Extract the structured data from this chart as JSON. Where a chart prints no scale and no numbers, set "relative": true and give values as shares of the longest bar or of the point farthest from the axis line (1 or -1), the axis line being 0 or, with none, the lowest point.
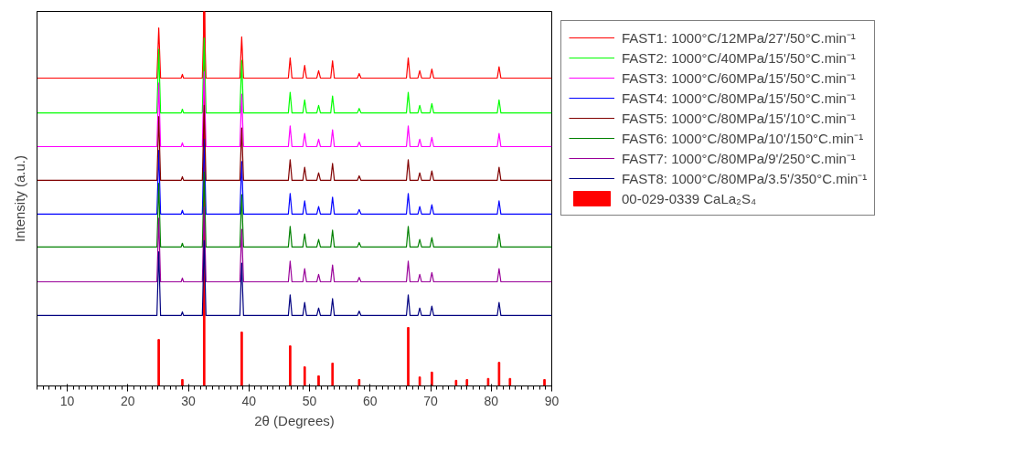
{
  "chart_data": {
    "type": "line",
    "relative": true,
    "xlabel": "2θ (Degrees)",
    "ylabel": "Intensity (a.u.)",
    "xlim": [
      5,
      90
    ],
    "xticks": [
      10,
      20,
      30,
      40,
      50,
      60,
      70,
      80,
      90
    ],
    "grid": false,
    "legend": "right",
    "tick_labels": "x",
    "x": [
      5,
      24.8,
      25.1,
      25.4,
      28.8,
      29.0,
      29.2,
      32.3,
      32.6,
      32.9,
      38.5,
      38.8,
      39.1,
      46.5,
      46.8,
      47.1,
      48.9,
      49.2,
      49.5,
      51.2,
      51.5,
      51.8,
      53.5,
      53.8,
      54.1,
      57.9,
      58.2,
      58.5,
      66.0,
      66.3,
      66.6,
      67.9,
      68.2,
      68.5,
      69.9,
      70.2,
      70.5,
      81.0,
      81.3,
      81.6,
      90
    ],
    "series": [
      {
        "name": "FAST1: 1000°C/12MPa/27'/50°C.min⁻¹",
        "color": "#ff0000",
        "values": [
          0.822,
          0.822,
          0.956,
          0.822,
          0.822,
          0.832,
          0.822,
          0.822,
          1.0,
          0.822,
          0.822,
          0.932,
          0.822,
          0.822,
          0.876,
          0.822,
          0.822,
          0.856,
          0.822,
          0.822,
          0.842,
          0.822,
          0.822,
          0.868,
          0.822,
          0.822,
          0.834,
          0.822,
          0.822,
          0.876,
          0.822,
          0.822,
          0.842,
          0.822,
          0.822,
          0.846,
          0.822,
          0.822,
          0.852,
          0.822,
          0.822
        ]
      },
      {
        "name": "FAST2: 1000°C/40MPa/15'/50°C.min⁻¹",
        "color": "#00ff00",
        "values": [
          0.729,
          0.729,
          0.899,
          0.729,
          0.729,
          0.739,
          0.729,
          0.729,
          0.929,
          0.729,
          0.729,
          0.869,
          0.729,
          0.729,
          0.784,
          0.729,
          0.729,
          0.764,
          0.729,
          0.729,
          0.749,
          0.729,
          0.729,
          0.774,
          0.729,
          0.729,
          0.741,
          0.729,
          0.729,
          0.784,
          0.729,
          0.729,
          0.749,
          0.729,
          0.729,
          0.754,
          0.729,
          0.729,
          0.764,
          0.729,
          0.729
        ]
      },
      {
        "name": "FAST3: 1000°C/60MPa/15'/50°C.min⁻¹",
        "color": "#ff00ff",
        "values": [
          0.639,
          0.639,
          0.809,
          0.639,
          0.639,
          0.649,
          0.639,
          0.639,
          0.839,
          0.639,
          0.639,
          0.779,
          0.639,
          0.639,
          0.694,
          0.639,
          0.639,
          0.674,
          0.639,
          0.639,
          0.659,
          0.639,
          0.639,
          0.684,
          0.639,
          0.639,
          0.651,
          0.639,
          0.639,
          0.694,
          0.639,
          0.639,
          0.659,
          0.639,
          0.639,
          0.664,
          0.639,
          0.639,
          0.674,
          0.639,
          0.639
        ]
      },
      {
        "name": "FAST4: 1000°C/80MPa/15'/50°C.min⁻¹",
        "color": "#0000ff",
        "values": [
          0.459,
          0.459,
          0.629,
          0.459,
          0.459,
          0.469,
          0.459,
          0.459,
          0.659,
          0.459,
          0.459,
          0.599,
          0.459,
          0.459,
          0.514,
          0.459,
          0.459,
          0.494,
          0.459,
          0.459,
          0.479,
          0.459,
          0.459,
          0.504,
          0.459,
          0.459,
          0.471,
          0.459,
          0.459,
          0.514,
          0.459,
          0.459,
          0.479,
          0.459,
          0.459,
          0.484,
          0.459,
          0.459,
          0.494,
          0.459,
          0.459
        ]
      },
      {
        "name": "FAST5: 1000°C/80MPa/15'/10°C.min⁻¹",
        "color": "#800000",
        "values": [
          0.549,
          0.549,
          0.719,
          0.549,
          0.549,
          0.559,
          0.549,
          0.549,
          0.749,
          0.549,
          0.549,
          0.689,
          0.549,
          0.549,
          0.604,
          0.549,
          0.549,
          0.584,
          0.549,
          0.549,
          0.569,
          0.549,
          0.549,
          0.594,
          0.549,
          0.549,
          0.561,
          0.549,
          0.549,
          0.604,
          0.549,
          0.549,
          0.569,
          0.549,
          0.549,
          0.574,
          0.549,
          0.549,
          0.584,
          0.549,
          0.549
        ]
      },
      {
        "name": "FAST6: 1000°C/80MPa/10'/150°C.min⁻¹",
        "color": "#008000",
        "values": [
          0.371,
          0.371,
          0.541,
          0.371,
          0.371,
          0.381,
          0.371,
          0.371,
          0.571,
          0.371,
          0.371,
          0.511,
          0.371,
          0.371,
          0.426,
          0.371,
          0.371,
          0.406,
          0.371,
          0.371,
          0.391,
          0.371,
          0.371,
          0.416,
          0.371,
          0.371,
          0.383,
          0.371,
          0.371,
          0.426,
          0.371,
          0.371,
          0.391,
          0.371,
          0.371,
          0.396,
          0.371,
          0.371,
          0.406,
          0.371,
          0.371
        ]
      },
      {
        "name": "FAST7: 1000°C/80MPa/9'/250°C.min⁻¹",
        "color": "#990099",
        "values": [
          0.278,
          0.278,
          0.448,
          0.278,
          0.278,
          0.288,
          0.278,
          0.278,
          0.478,
          0.278,
          0.278,
          0.418,
          0.278,
          0.278,
          0.333,
          0.278,
          0.278,
          0.313,
          0.278,
          0.278,
          0.298,
          0.278,
          0.278,
          0.323,
          0.278,
          0.278,
          0.29,
          0.278,
          0.278,
          0.333,
          0.278,
          0.278,
          0.298,
          0.278,
          0.278,
          0.303,
          0.278,
          0.278,
          0.313,
          0.278,
          0.278
        ]
      },
      {
        "name": "FAST8: 1000°C/80MPa/3.5'/350°C.min⁻¹",
        "color": "#000080",
        "values": [
          0.188,
          0.188,
          0.358,
          0.188,
          0.188,
          0.198,
          0.188,
          0.188,
          0.388,
          0.188,
          0.188,
          0.328,
          0.188,
          0.188,
          0.243,
          0.188,
          0.188,
          0.223,
          0.188,
          0.188,
          0.208,
          0.188,
          0.188,
          0.233,
          0.188,
          0.188,
          0.2,
          0.188,
          0.188,
          0.243,
          0.188,
          0.188,
          0.208,
          0.188,
          0.188,
          0.213,
          0.188,
          0.188,
          0.223,
          0.188,
          0.188
        ]
      },
      {
        "name": "00-029-0339 CaLa₂S₄",
        "type": "bar",
        "color": "#ff0000",
        "x": [
          25.1,
          29.0,
          32.6,
          38.8,
          46.8,
          49.2,
          51.5,
          53.8,
          58.2,
          66.3,
          68.2,
          70.2,
          74.2,
          76.0,
          79.5,
          81.3,
          83.1,
          88.8
        ],
        "values": [
          0.124,
          0.017,
          1.0,
          0.144,
          0.107,
          0.051,
          0.027,
          0.061,
          0.017,
          0.156,
          0.024,
          0.037,
          0.015,
          0.017,
          0.02,
          0.063,
          0.02,
          0.017
        ]
      }
    ]
  }
}
